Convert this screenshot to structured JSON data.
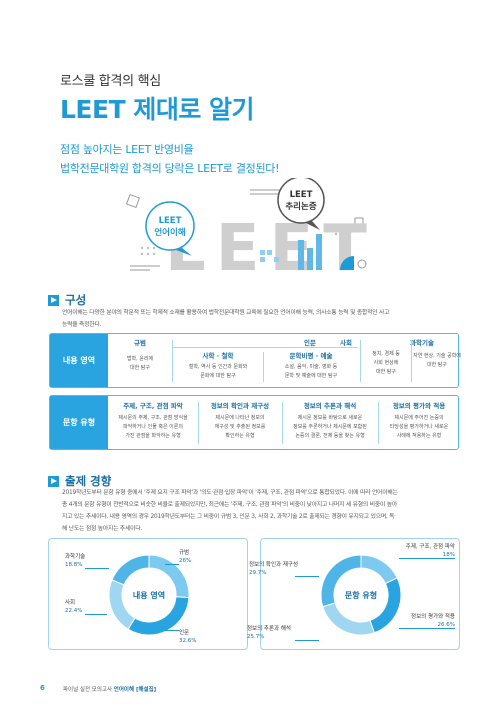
{
  "header": {
    "subtitle": "로스쿨 합격의 핵심",
    "title": "LEET 제대로 알기"
  },
  "lead": {
    "line1": "점점 높아지는 LEET 반영비율",
    "line2": "법학전문대학원 합격의 당락은 LEET로 결정된다!"
  },
  "illustration": {
    "bubble_left": [
      "LEET",
      "언어이해"
    ],
    "bubble_right": [
      "LEET",
      "추리논증"
    ],
    "big_text": "LEET"
  },
  "section1": {
    "title": "구성",
    "text1": "언어이해는 다양한 분야의 학문적 또는 학제적 소재를 활용하여 법학전문대학원 교육에 필요한 언어이해 능력, 의사소통 능력 및 종합적인 사고",
    "text2": "능력을 측정한다.",
    "content": {
      "head": "내용 영역",
      "groups": {
        "humanities": "인문",
        "social": "사회",
        "science": "과학기술"
      },
      "cells": [
        {
          "label": "규범",
          "desc1": "법학, 윤리에",
          "desc2": "대한 탐구"
        },
        {
          "label": "사학 · 철학",
          "desc1": "철학, 역사 등 인간과 문화와",
          "desc2": "문화에 대한 탐구"
        },
        {
          "label": "문학비평 · 예술",
          "desc1": "소설, 음악, 미술, 영화 등",
          "desc2": "문학 및 예술에 대한 탐구"
        },
        {
          "label": "",
          "desc1": "정치, 경제 등",
          "desc2": "사회 현상에",
          "desc3": "대한 탐구"
        },
        {
          "label": "",
          "desc1": "자연 현상, 기술 공학에",
          "desc2": "대한 탐구"
        }
      ]
    },
    "types": {
      "head": "문항 유형",
      "cells": [
        {
          "label": "주제, 구조, 관점 파악",
          "desc1": "제시문의 주제, 구조, 관점 방식을",
          "desc2": "파악하거나 인물 혹은 이론의",
          "desc3": "가진 관점을 파악하는 유형"
        },
        {
          "label": "정보의 확인과 재구성",
          "desc1": "제시문에 나타난 정보의",
          "desc2": "재구성 및 추출된 정보를",
          "desc3": "확인하는 유형"
        },
        {
          "label": "정보의 추론과 해석",
          "desc1": "제시문 정보를 바탕으로 새로운",
          "desc2": "정보를 추론하거나 제시문에 포함된",
          "desc3": "논증의 결론, 전제 등을 찾는 유형"
        },
        {
          "label": "정보의 평가와 적용",
          "desc1": "제시문에 주어진 논증의",
          "desc2": "타당성을 평가하거나 새로운",
          "desc3": "사례에 적용하는 유형"
        }
      ]
    }
  },
  "section2": {
    "title": "출제 경향",
    "lines": [
      "2019학년도부터 문항 유형 중에서 '주제 요지 구조 파악'과 '의도·관점·입장 파악'이 '주제, 구조, 관점 파악'으로 통합되었다. 이에 따라 언어이해는",
      "총 4개의 문항 유형이 전반적으로 비슷한 비율로 출제되었지만, 최근에는 '주제, 구조, 관점 파악'의 비중이 낮아지고 나머지 세 유형의 비중이 높아",
      "지고 있는 추세이다. 내용 영역의 경우 2019학년도부터는 그 비중이 규범 3, 인문 3, 사회 2, 과학기술 2로 출제되는 경향이 유지되고 있으며, 독",
      "해 난도는 점점 높아지는 추세이다."
    ]
  },
  "chart_data": [
    {
      "type": "pie",
      "title": "내용 영역",
      "categories": [
        "규범",
        "인문",
        "사회",
        "과학기술"
      ],
      "values": [
        26,
        32.6,
        22.4,
        18.8
      ],
      "value_labels": [
        "26%",
        "32.6%",
        "22.4%",
        "18.8%"
      ],
      "colors": [
        "#7ccaf0",
        "#29a4e0",
        "#9fd7f3",
        "#4fb5e6"
      ]
    },
    {
      "type": "pie",
      "title": "문항 유형",
      "categories": [
        "주제, 구조, 관점 파악",
        "정보의 평가와 적용",
        "정보의 추론과 해석",
        "정보의 확인과 재구성"
      ],
      "values": [
        18,
        26.6,
        25.7,
        29.7
      ],
      "value_labels": [
        "18%",
        "26.6%",
        "25.7%",
        "29.7%"
      ],
      "colors": [
        "#7ccaf0",
        "#29a4e0",
        "#9fd7f3",
        "#4fb5e6"
      ]
    }
  ],
  "footer": {
    "page": "6",
    "text_plain": "파이널 실전 모의고사 ",
    "text_bold": "언어이해 [해설집]"
  }
}
